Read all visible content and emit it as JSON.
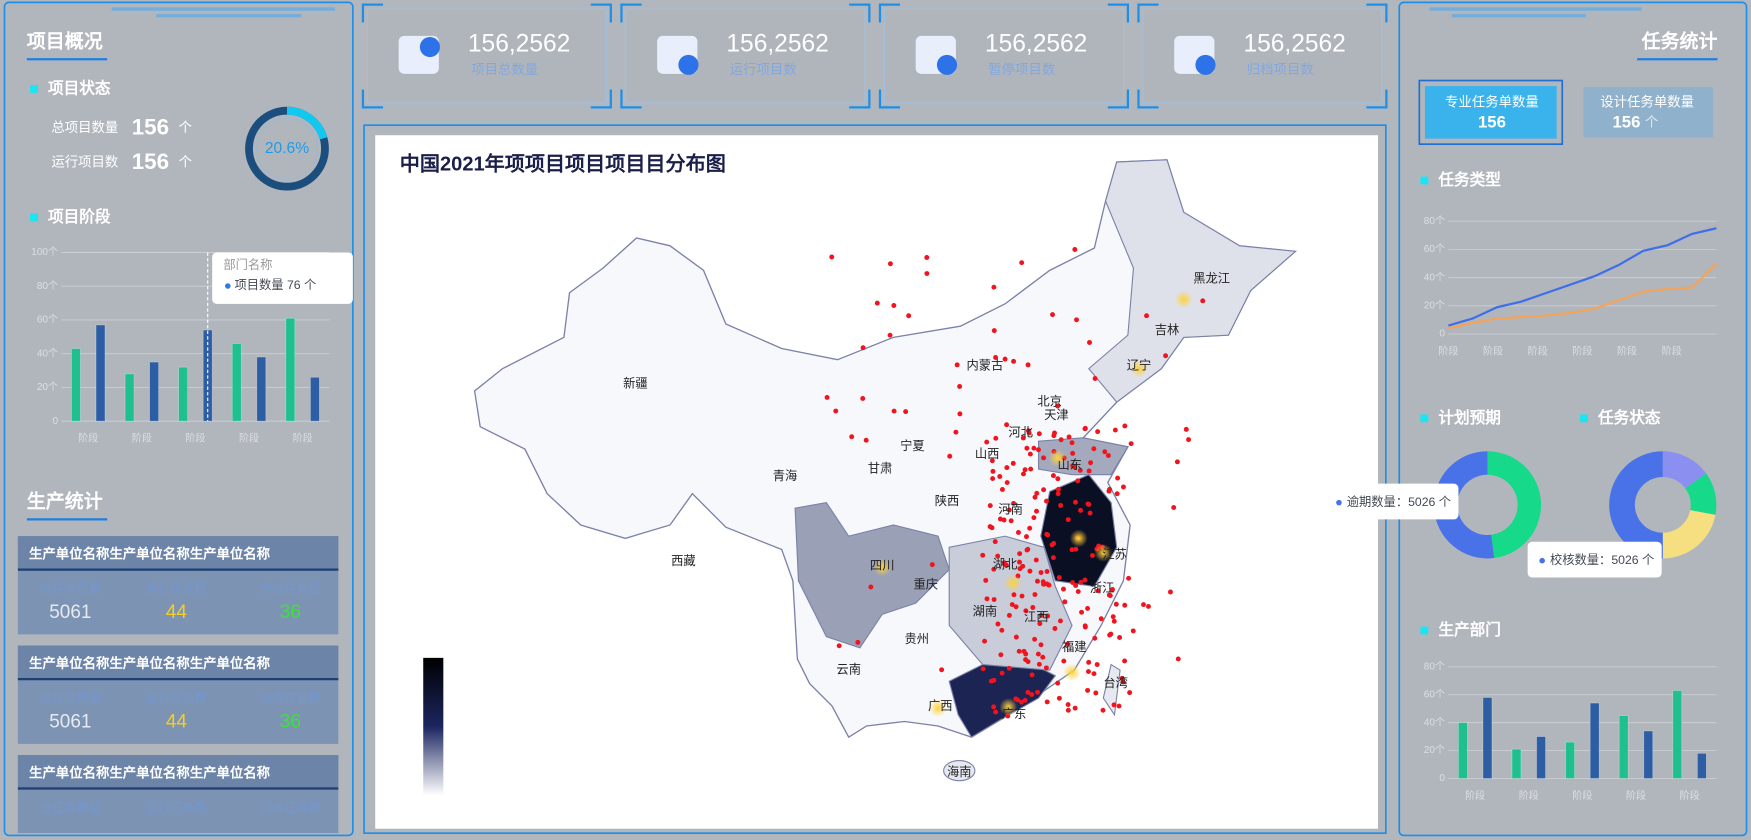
{
  "left_panel": {
    "title": "项目概况",
    "project_status": {
      "heading": "项目状态",
      "rows": [
        {
          "label": "总项目数量",
          "value": "156",
          "unit": "个"
        },
        {
          "label": "运行项目数",
          "value": "156",
          "unit": "个"
        }
      ],
      "ratio": {
        "value": 20.6,
        "label": "20.6%",
        "color": "#11c8f0"
      }
    },
    "project_stage": {
      "heading": "项目阶段",
      "chart": {
        "type": "bar",
        "categories": [
          "阶段",
          "阶段",
          "阶段",
          "阶段",
          "阶段"
        ],
        "series": [
          {
            "color": "#1fc08e",
            "values": [
              43,
              28,
              32,
              46,
              61
            ]
          },
          {
            "color": "#2d5da3",
            "values": [
              57,
              35,
              54,
              38,
              26
            ]
          }
        ],
        "ylim": [
          0,
          100
        ],
        "yticks": [
          0,
          {
            "value": 20,
            "label": "20个"
          },
          {
            "value": 40,
            "label": "40个"
          },
          {
            "value": 60,
            "label": "60个"
          },
          {
            "value": 80,
            "label": "80个"
          },
          {
            "value": 100,
            "label": "100个"
          }
        ]
      },
      "tooltip": {
        "title": "部门名称",
        "text": "项目数量 76 个"
      }
    },
    "production": {
      "title": "生产统计",
      "cards": [
        {
          "name": "生产单位名称生产单位名称生产单位名称",
          "metrics": [
            {
              "label": "总任务数量",
              "value": "5061"
            },
            {
              "label": "运行任务数",
              "value": "44"
            },
            {
              "label": "完成任务数",
              "value": "36"
            }
          ]
        },
        {
          "name": "生产单位名称生产单位名称生产单位名称",
          "metrics": [
            {
              "label": "总任务数量",
              "value": "5061"
            },
            {
              "label": "运行任务数",
              "value": "44"
            },
            {
              "label": "完成任务数",
              "value": "36"
            }
          ]
        },
        {
          "name": "生产单位名称生产单位名称生产单位名称",
          "metrics": [
            {
              "label": "总任务数量"
            },
            {
              "label": "运行任务数"
            },
            {
              "label": "完成任务数"
            }
          ]
        }
      ]
    }
  },
  "kpis": [
    {
      "value": "156,2562",
      "label": "项目总数量"
    },
    {
      "value": "156,2562",
      "label": "运行项目数"
    },
    {
      "value": "156,2562",
      "label": "暂停项目数"
    },
    {
      "value": "156,2562",
      "label": "归档项目数"
    }
  ],
  "map": {
    "title": "中国2021年项项目项目项目目分布图",
    "provinces": [
      "黑龙江",
      "吉林",
      "辽宁",
      "内蒙古",
      "北京",
      "天津",
      "河北",
      "山西",
      "山东",
      "宁夏",
      "甘肃",
      "青海",
      "新疆",
      "西藏",
      "陕西",
      "河南",
      "江苏",
      "湖北",
      "四川",
      "重庆",
      "浙江",
      "湖南",
      "江西",
      "贵州",
      "福建",
      "云南",
      "台湾",
      "广西",
      "广东",
      "海南"
    ]
  },
  "right_panel": {
    "title": "任务统计",
    "buttons": [
      {
        "label": "专业任务单数量",
        "value": "156"
      },
      {
        "label": "设计任务单数量",
        "value": "156",
        "unit": "个"
      }
    ],
    "task_type": {
      "heading": "任务类型",
      "chart": {
        "type": "line",
        "categories": [
          "阶段",
          null,
          "阶段",
          null,
          "阶段",
          null,
          "阶段",
          null,
          "阶段",
          null,
          "阶段",
          null
        ],
        "series": [
          {
            "color": "#3f6fe8",
            "values": [
              6,
              11,
              19,
              23,
              29,
              35,
              41,
              49,
              59,
              63,
              71,
              75
            ]
          },
          {
            "color": "#f3a35a",
            "values": [
              4,
              8,
              11,
              12,
              13,
              15,
              18,
              24,
              30,
              32,
              33,
              50
            ]
          }
        ],
        "ylim": [
          0,
          80
        ],
        "yticks": [
          0,
          {
            "value": 20,
            "label": "20个"
          },
          {
            "value": 40,
            "label": "40个"
          },
          {
            "value": 60,
            "label": "60个"
          },
          {
            "value": 80,
            "label": "80个"
          }
        ]
      }
    },
    "plan": {
      "heading": "计划预期",
      "chart": {
        "type": "donut",
        "values": [
          48,
          52
        ],
        "colors": [
          "#16d98a",
          "#4a72e8"
        ]
      },
      "tooltip": "逾期数量：5026 个"
    },
    "status": {
      "heading": "任务状态",
      "chart": {
        "type": "donut",
        "values": [
          15,
          13,
          22,
          50
        ],
        "colors": [
          "#8a8ff0",
          "#16d98a",
          "#f5df80",
          "#4a72e8"
        ]
      },
      "tooltip": "校核数量：5026 个"
    },
    "department": {
      "heading": "生产部门",
      "chart": {
        "type": "bar",
        "categories": [
          "阶段",
          "阶段",
          "阶段",
          "阶段",
          "阶段"
        ],
        "series": [
          {
            "color": "#1fc08e",
            "values": [
              40,
              21,
              26,
              45,
              63
            ]
          },
          {
            "color": "#2d5da3",
            "values": [
              58,
              30,
              54,
              34,
              18
            ]
          }
        ],
        "ylim": [
          0,
          80
        ],
        "yticks": [
          0,
          {
            "value": 20,
            "label": "20个"
          },
          {
            "value": 40,
            "label": "40个"
          },
          {
            "value": 60,
            "label": "60个"
          },
          {
            "value": 80,
            "label": "80个"
          }
        ]
      }
    }
  }
}
